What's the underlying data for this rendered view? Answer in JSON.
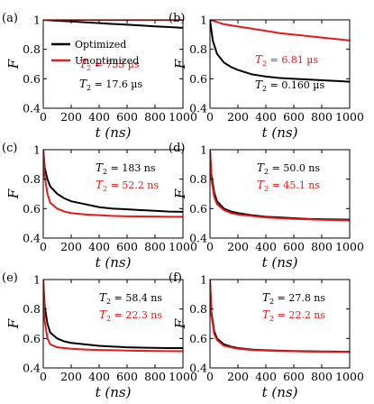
{
  "legend": [
    {
      "label": "Optimized",
      "color": "#000000"
    },
    {
      "label": "Unoptimized",
      "color": "#e41a1c"
    }
  ],
  "chart_data": [
    {
      "panel": "(a)",
      "type": "line",
      "xlim": [
        0,
        1000
      ],
      "ylim": [
        0.4,
        1
      ],
      "xticks": [
        "0",
        "200",
        "400",
        "600",
        "800",
        "1000"
      ],
      "yticks": [
        "0.4",
        "0.6",
        "0.8",
        "1"
      ],
      "xlabel": "t (ns)",
      "ylabel": "F",
      "annotations": [
        {
          "prefix": "T",
          "sub": "2",
          "text": " = 733 µs",
          "color": "#e41a1c"
        },
        {
          "prefix": "T",
          "sub": "2",
          "text": " = 17.6 µs",
          "color": "#000000"
        }
      ],
      "series": [
        {
          "color": "#000000",
          "x": [
            0,
            100,
            200,
            300,
            400,
            500,
            600,
            700,
            800,
            900,
            1000
          ],
          "y": [
            1.0,
            0.994,
            0.989,
            0.983,
            0.978,
            0.972,
            0.967,
            0.962,
            0.956,
            0.951,
            0.946
          ]
        },
        {
          "color": "#e41a1c",
          "x": [
            0,
            100,
            200,
            300,
            400,
            500,
            600,
            700,
            800,
            900,
            1000
          ],
          "y": [
            1.0,
            1.0,
            1.0,
            1.0,
            0.999,
            0.999,
            0.999,
            0.999,
            0.999,
            0.999,
            0.999
          ]
        }
      ]
    },
    {
      "panel": "(b)",
      "type": "line",
      "xlim": [
        0,
        1000
      ],
      "ylim": [
        0.4,
        1
      ],
      "xticks": [
        "0",
        "200",
        "400",
        "600",
        "800",
        "1000"
      ],
      "yticks": [
        "0.4",
        "0.6",
        "0.8",
        "1"
      ],
      "xlabel": "t (ns)",
      "ylabel": "F",
      "annotations": [
        {
          "prefix": "T",
          "sub": "2",
          "text": " = 6.81 µs",
          "color": "#e41a1c"
        },
        {
          "prefix": "T",
          "sub": "2",
          "text": " = 0.160 µs",
          "color": "#000000"
        }
      ],
      "series": [
        {
          "color": "#e41a1c",
          "x": [
            0,
            50,
            100,
            200,
            300,
            400,
            500,
            600,
            700,
            800,
            900,
            1000
          ],
          "y": [
            1.0,
            0.985,
            0.97,
            0.955,
            0.94,
            0.925,
            0.91,
            0.9,
            0.89,
            0.88,
            0.87,
            0.86
          ]
        },
        {
          "color": "#000000",
          "x": [
            0,
            20,
            50,
            100,
            150,
            200,
            300,
            400,
            500,
            600,
            700,
            800,
            900,
            1000
          ],
          "y": [
            1.0,
            0.86,
            0.77,
            0.71,
            0.68,
            0.66,
            0.63,
            0.615,
            0.605,
            0.6,
            0.595,
            0.59,
            0.585,
            0.58
          ]
        }
      ]
    },
    {
      "panel": "(c)",
      "type": "line",
      "xlim": [
        0,
        1000
      ],
      "ylim": [
        0.4,
        1
      ],
      "xticks": [
        "0",
        "200",
        "400",
        "600",
        "800",
        "1000"
      ],
      "yticks": [
        "0.4",
        "0.6",
        "0.8",
        "1"
      ],
      "xlabel": "t (ns)",
      "ylabel": "F",
      "annotations": [
        {
          "prefix": "T",
          "sub": "2",
          "text": " = 183 ns",
          "color": "#000000"
        },
        {
          "prefix": "T",
          "sub": "2",
          "text": " = 52.2 ns",
          "color": "#e41a1c"
        }
      ],
      "series": [
        {
          "color": "#000000",
          "x": [
            0,
            10,
            30,
            50,
            100,
            150,
            200,
            300,
            400,
            500,
            600,
            700,
            800,
            900,
            1000
          ],
          "y": [
            1.0,
            0.88,
            0.8,
            0.75,
            0.7,
            0.67,
            0.65,
            0.63,
            0.61,
            0.6,
            0.595,
            0.59,
            0.585,
            0.58,
            0.578
          ]
        },
        {
          "color": "#e41a1c",
          "x": [
            0,
            10,
            30,
            50,
            100,
            150,
            200,
            300,
            400,
            500,
            600,
            700,
            800,
            900,
            1000
          ],
          "y": [
            1.0,
            0.82,
            0.7,
            0.64,
            0.6,
            0.58,
            0.57,
            0.56,
            0.555,
            0.55,
            0.548,
            0.547,
            0.546,
            0.545,
            0.545
          ]
        }
      ]
    },
    {
      "panel": "(d)",
      "type": "line",
      "xlim": [
        0,
        1000
      ],
      "ylim": [
        0.4,
        1
      ],
      "xticks": [
        "0",
        "200",
        "400",
        "600",
        "800",
        "1000"
      ],
      "yticks": [
        "0.4",
        "0.6",
        "0.8",
        "1"
      ],
      "xlabel": "t (ns)",
      "ylabel": "F",
      "annotations": [
        {
          "prefix": "T",
          "sub": "2",
          "text": " = 50.0 ns",
          "color": "#000000"
        },
        {
          "prefix": "T",
          "sub": "2",
          "text": " = 45.1 ns",
          "color": "#e41a1c"
        }
      ],
      "series": [
        {
          "color": "#000000",
          "x": [
            0,
            10,
            30,
            50,
            100,
            150,
            200,
            300,
            400,
            500,
            600,
            700,
            800,
            900,
            1000
          ],
          "y": [
            1.0,
            0.83,
            0.71,
            0.65,
            0.6,
            0.58,
            0.57,
            0.555,
            0.545,
            0.54,
            0.535,
            0.53,
            0.528,
            0.526,
            0.525
          ]
        },
        {
          "color": "#e41a1c",
          "x": [
            0,
            10,
            30,
            50,
            100,
            150,
            200,
            300,
            400,
            500,
            600,
            700,
            800,
            900,
            1000
          ],
          "y": [
            1.0,
            0.8,
            0.68,
            0.63,
            0.59,
            0.57,
            0.56,
            0.55,
            0.54,
            0.535,
            0.53,
            0.527,
            0.524,
            0.522,
            0.52
          ]
        }
      ]
    },
    {
      "panel": "(e)",
      "type": "line",
      "xlim": [
        0,
        1000
      ],
      "ylim": [
        0.4,
        1
      ],
      "xticks": [
        "0",
        "200",
        "400",
        "600",
        "800",
        "1000"
      ],
      "yticks": [
        "0.4",
        "0.6",
        "0.8",
        "1"
      ],
      "xlabel": "t (ns)",
      "ylabel": "F",
      "annotations": [
        {
          "prefix": "T",
          "sub": "2",
          "text": " = 58.4 ns",
          "color": "#000000"
        },
        {
          "prefix": "T",
          "sub": "2",
          "text": " = 22.3 ns",
          "color": "#e41a1c"
        }
      ],
      "series": [
        {
          "color": "#000000",
          "x": [
            0,
            10,
            30,
            50,
            100,
            150,
            200,
            300,
            400,
            500,
            600,
            700,
            800,
            900,
            1000
          ],
          "y": [
            1.0,
            0.82,
            0.7,
            0.64,
            0.6,
            0.58,
            0.57,
            0.56,
            0.55,
            0.545,
            0.54,
            0.538,
            0.536,
            0.535,
            0.535
          ]
        },
        {
          "color": "#e41a1c",
          "x": [
            0,
            10,
            30,
            50,
            100,
            150,
            200,
            300,
            400,
            500,
            600,
            700,
            800,
            900,
            1000
          ],
          "y": [
            1.0,
            0.72,
            0.6,
            0.56,
            0.54,
            0.535,
            0.53,
            0.525,
            0.522,
            0.52,
            0.518,
            0.516,
            0.515,
            0.514,
            0.513
          ]
        }
      ]
    },
    {
      "panel": "(f)",
      "type": "line",
      "xlim": [
        0,
        1000
      ],
      "ylim": [
        0.4,
        1
      ],
      "xticks": [
        "0",
        "200",
        "400",
        "600",
        "800",
        "1000"
      ],
      "yticks": [
        "0.4",
        "0.6",
        "0.8",
        "1"
      ],
      "xlabel": "t (ns)",
      "ylabel": "F",
      "annotations": [
        {
          "prefix": "T",
          "sub": "2",
          "text": " = 27.8 ns",
          "color": "#000000"
        },
        {
          "prefix": "T",
          "sub": "2",
          "text": " = 22.2 ns",
          "color": "#e41a1c"
        }
      ],
      "series": [
        {
          "color": "#000000",
          "x": [
            0,
            10,
            30,
            50,
            100,
            150,
            200,
            300,
            400,
            500,
            600,
            700,
            800,
            900,
            1000
          ],
          "y": [
            1.0,
            0.78,
            0.65,
            0.6,
            0.56,
            0.545,
            0.535,
            0.525,
            0.52,
            0.517,
            0.515,
            0.513,
            0.512,
            0.511,
            0.51
          ]
        },
        {
          "color": "#e41a1c",
          "x": [
            0,
            10,
            30,
            50,
            100,
            150,
            200,
            300,
            400,
            500,
            600,
            700,
            800,
            900,
            1000
          ],
          "y": [
            1.0,
            0.76,
            0.63,
            0.59,
            0.55,
            0.54,
            0.53,
            0.522,
            0.518,
            0.515,
            0.513,
            0.511,
            0.51,
            0.509,
            0.508
          ]
        }
      ]
    }
  ]
}
